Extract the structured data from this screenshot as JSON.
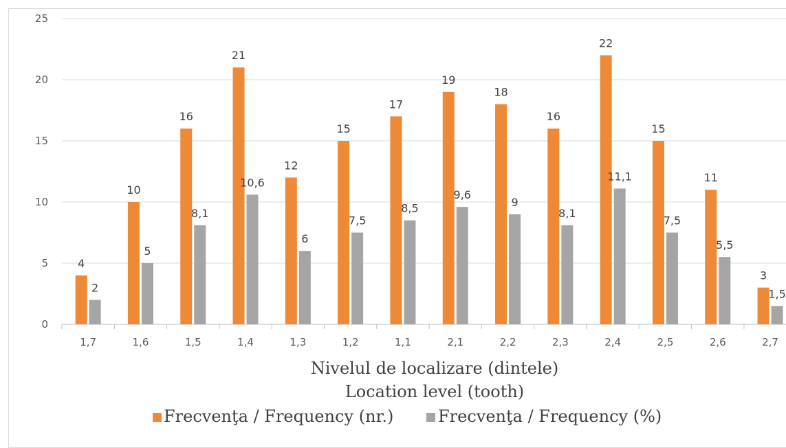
{
  "chart_data": {
    "type": "bar",
    "categories": [
      "1,7",
      "1,6",
      "1,5",
      "1,4",
      "1,3",
      "1,2",
      "1,1",
      "2,1",
      "2,2",
      "2,3",
      "2,4",
      "2,5",
      "2,6",
      "2,7"
    ],
    "series": [
      {
        "name": "Frecvenţa / Frequency (nr.)",
        "color": "#ED8937",
        "values": [
          4,
          10,
          16,
          21,
          12,
          15,
          17,
          19,
          18,
          16,
          22,
          15,
          11,
          3
        ],
        "labels": [
          "4",
          "10",
          "16",
          "21",
          "12",
          "15",
          "17",
          "19",
          "18",
          "16",
          "22",
          "15",
          "11",
          "3"
        ]
      },
      {
        "name": "Frecvenţa / Frequency (%)",
        "color": "#A5A5A5",
        "values": [
          2,
          5,
          8.1,
          10.6,
          6,
          7.5,
          8.5,
          9.6,
          9,
          8.1,
          11.1,
          7.5,
          5.5,
          1.5
        ],
        "labels": [
          "2",
          "5",
          "8,1",
          "10,6",
          "6",
          "7,5",
          "8,5",
          "9,6",
          "9",
          "8,1",
          "11,1",
          "7,5",
          "5,5",
          "1,5"
        ]
      }
    ],
    "y_ticks": [
      "0",
      "5",
      "10",
      "15",
      "20",
      "25"
    ],
    "ylim": [
      0,
      25
    ],
    "xlabel_line1": "Nivelul de localizare (dintele)",
    "xlabel_line2": "Location level (tooth)",
    "grid": true,
    "legend_position": "bottom",
    "gridline_color": "#D9D9D9"
  }
}
